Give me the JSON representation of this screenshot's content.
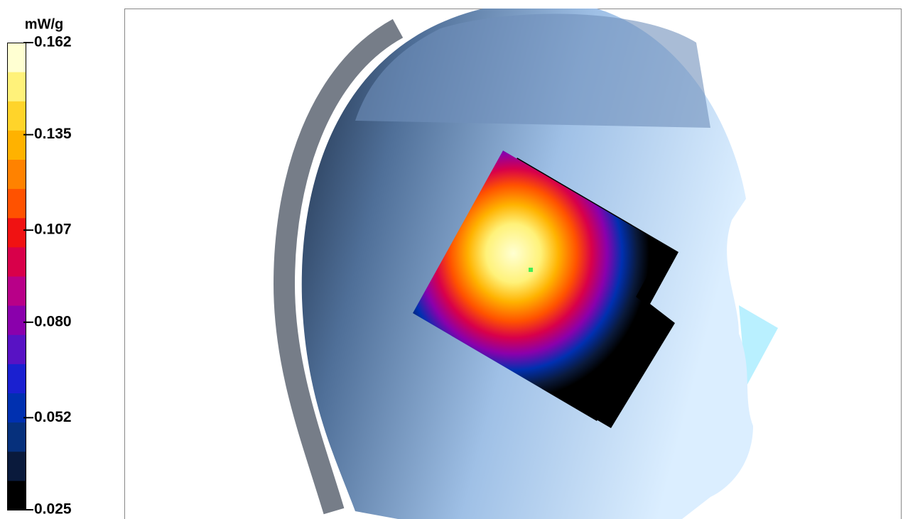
{
  "chart_data": {
    "type": "colorbar",
    "unit": "mW/g",
    "ylim": [
      0.025,
      0.162
    ],
    "yticks": [
      0.025,
      0.052,
      {
        "value": 0.08,
        "label": "0.080"
      },
      0.107,
      0.135,
      0.162
    ],
    "colors": [
      "#000000",
      "#0a1a3c",
      "#06307c",
      "#0030b0",
      "#1a20d0",
      "#5812c4",
      "#8a00ac",
      "#b80088",
      "#d8004a",
      "#f01212",
      "#ff5200",
      "#ff8200",
      "#ffb200",
      "#ffd42a",
      "#fff27a",
      "#ffffd2"
    ]
  }
}
